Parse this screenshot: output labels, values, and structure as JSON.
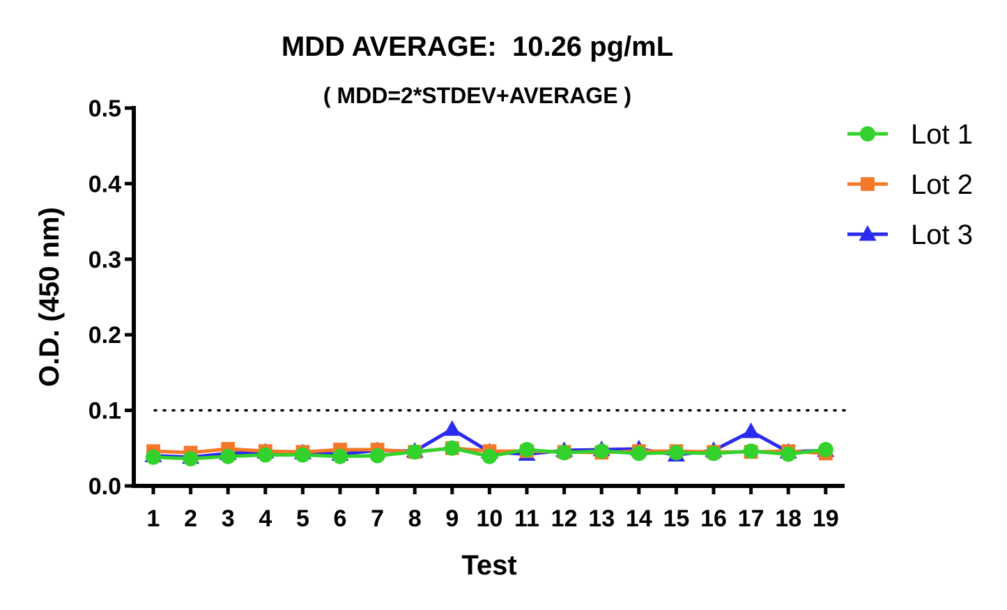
{
  "chart_data": {
    "type": "line",
    "title": "MDD AVERAGE:  10.26 pg/mL",
    "subtitle": "( MDD=2*STDEV+AVERAGE )",
    "xlabel": "Test",
    "ylabel": "O.D. (450 nm)",
    "categories": [
      "1",
      "2",
      "3",
      "4",
      "5",
      "6",
      "7",
      "8",
      "9",
      "10",
      "11",
      "12",
      "13",
      "14",
      "15",
      "16",
      "17",
      "18",
      "19"
    ],
    "ylim": [
      0,
      0.5
    ],
    "yticks": [
      "0.0",
      "0.1",
      "0.2",
      "0.3",
      "0.4",
      "0.5"
    ],
    "ytick_values": [
      0,
      0.1,
      0.2,
      0.3,
      0.4,
      0.5
    ],
    "threshold_line": 0.1,
    "grid": false,
    "legend_position": "top-right",
    "series": [
      {
        "name": "Lot 3",
        "color": "#2b2bef",
        "marker": "triangle",
        "values": [
          0.04,
          0.038,
          0.043,
          0.045,
          0.044,
          0.042,
          0.047,
          0.046,
          0.075,
          0.045,
          0.042,
          0.047,
          0.048,
          0.049,
          0.041,
          0.047,
          0.072,
          0.045,
          0.047
        ]
      },
      {
        "name": "Lot 2",
        "color": "#f5782a",
        "marker": "square",
        "values": [
          0.046,
          0.044,
          0.049,
          0.046,
          0.045,
          0.048,
          0.048,
          0.045,
          0.05,
          0.046,
          0.046,
          0.045,
          0.044,
          0.046,
          0.046,
          0.045,
          0.045,
          0.046,
          0.043
        ]
      },
      {
        "name": "Lot 1",
        "color": "#33d12b",
        "marker": "circle",
        "values": [
          0.038,
          0.036,
          0.039,
          0.041,
          0.041,
          0.039,
          0.04,
          0.045,
          0.05,
          0.039,
          0.048,
          0.044,
          0.046,
          0.043,
          0.044,
          0.043,
          0.046,
          0.042,
          0.048
        ]
      }
    ],
    "legend_order": [
      "Lot 1",
      "Lot 2",
      "Lot 3"
    ]
  }
}
